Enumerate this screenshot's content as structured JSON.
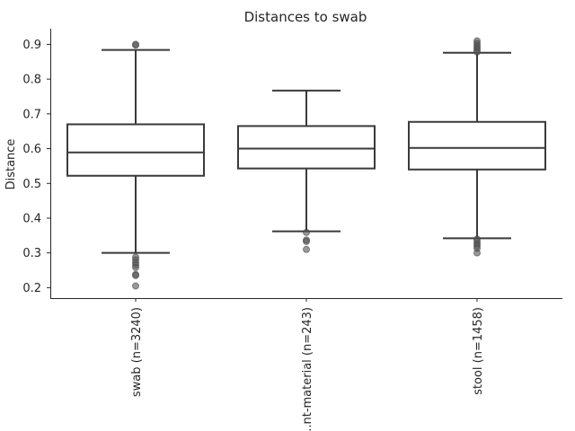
{
  "chart_data": {
    "type": "box",
    "title": "Distances to swab",
    "ylabel": "Distance",
    "xlabel": "",
    "ylim": [
      0.17,
      0.945
    ],
    "yticks": [
      0.2,
      0.3,
      0.4,
      0.5,
      0.6,
      0.7,
      0.8,
      0.9
    ],
    "ytick_labels": [
      "0.2",
      "0.3",
      "0.4",
      "0.5",
      "0.6",
      "0.7",
      "0.8",
      "0.9"
    ],
    "grid": false,
    "categories": [
      "swab (n=3240)",
      "...nt-material (n=243)",
      "stool (n=1458)"
    ],
    "boxes": [
      {
        "whisker_low": 0.3,
        "q1": 0.522,
        "median": 0.589,
        "q3": 0.67,
        "whisker_high": 0.884,
        "outliers": [
          0.898,
          0.9,
          0.288,
          0.28,
          0.272,
          0.265,
          0.258,
          0.238,
          0.235,
          0.205
        ]
      },
      {
        "whisker_low": 0.362,
        "q1": 0.543,
        "median": 0.6,
        "q3": 0.665,
        "whisker_high": 0.767,
        "outliers": [
          0.359,
          0.337,
          0.333,
          0.31
        ]
      },
      {
        "whisker_low": 0.342,
        "q1": 0.54,
        "median": 0.602,
        "q3": 0.677,
        "whisker_high": 0.876,
        "outliers": [
          0.91,
          0.903,
          0.896,
          0.89,
          0.884,
          0.878,
          0.34,
          0.333,
          0.326,
          0.32,
          0.313,
          0.3
        ]
      }
    ]
  }
}
